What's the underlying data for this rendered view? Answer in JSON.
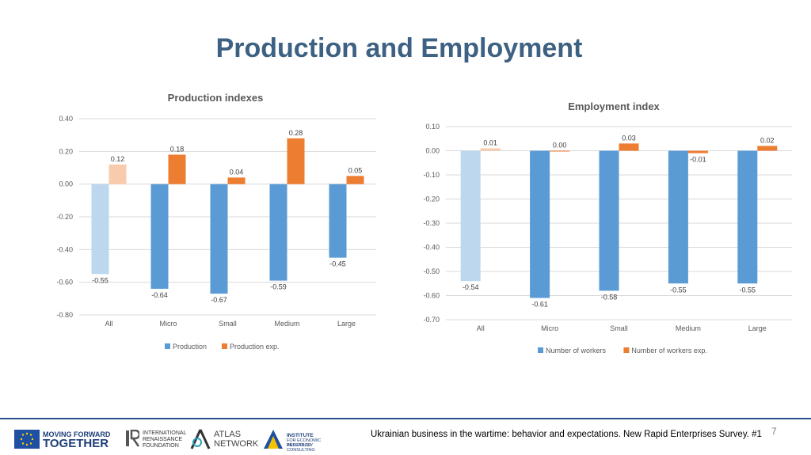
{
  "slide": {
    "title": "Production and Employment",
    "page_number": "7",
    "footer": "Ukrainian business in the wartime: behavior and expectations. New Rapid Enterprises Survey. #1"
  },
  "logos": {
    "mft_line1": "MOVING FORWARD",
    "mft_line2": "TOGETHER",
    "irf_line1": "INTERNATIONAL",
    "irf_line2": "RENAISSANCE",
    "irf_line3": "FOUNDATION",
    "atlas_line1": "ATLAS",
    "atlas_line2": "NETWORK",
    "ier_line1": "INSTITUTE",
    "ier_line2": "FOR ECONOMIC RESEARCH",
    "ier_line3": "AND POLICY CONSULTING"
  },
  "chart_data": [
    {
      "type": "bar",
      "title": "Production indexes",
      "categories": [
        "All",
        "Micro",
        "Small",
        "Medium",
        "Large"
      ],
      "series": [
        {
          "name": "Production",
          "values": [
            -0.55,
            -0.64,
            -0.67,
            -0.59,
            -0.45
          ],
          "color": "#5b9bd5"
        },
        {
          "name": "Production exp.",
          "values": [
            0.12,
            0.18,
            0.04,
            0.28,
            0.05
          ],
          "color": "#ed7d31"
        }
      ],
      "value_labels": [
        [
          "-0.55",
          "-0.64",
          "-0.67",
          "-0.59",
          "-0.45"
        ],
        [
          "0.12",
          "0.18",
          "0.04",
          "0.28",
          "0.05"
        ]
      ],
      "ylim": [
        -0.8,
        0.4
      ],
      "yticks": [
        "0.40",
        "0.20",
        "0.00",
        "-0.20",
        "-0.40",
        "-0.60",
        "-0.80"
      ],
      "first_category_faded": true,
      "legend": "bottom",
      "grid": true
    },
    {
      "type": "bar",
      "title": "Employment index",
      "categories": [
        "All",
        "Micro",
        "Small",
        "Medium",
        "Large"
      ],
      "series": [
        {
          "name": "Number of workers",
          "values": [
            -0.54,
            -0.61,
            -0.58,
            -0.55,
            -0.55
          ],
          "color": "#5b9bd5"
        },
        {
          "name": "Number of workers exp.",
          "values": [
            0.01,
            0.0,
            0.03,
            -0.01,
            0.02
          ],
          "color": "#ed7d31"
        }
      ],
      "value_labels": [
        [
          "-0.54",
          "-0.61",
          "-0.58",
          "-0.55",
          "-0.55"
        ],
        [
          "0.01",
          "0.00",
          "0.03",
          "-0.01",
          "0.02"
        ]
      ],
      "ylim": [
        -0.7,
        0.1
      ],
      "yticks": [
        "0.10",
        "0.00",
        "-0.10",
        "-0.20",
        "-0.30",
        "-0.40",
        "-0.50",
        "-0.60",
        "-0.70"
      ],
      "first_category_faded": true,
      "legend": "bottom",
      "grid": true
    }
  ]
}
